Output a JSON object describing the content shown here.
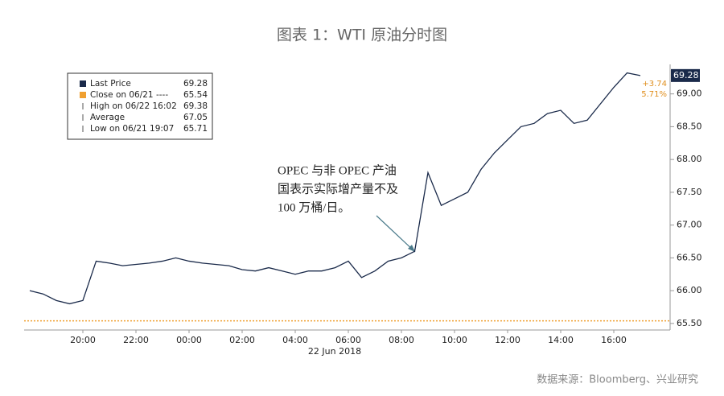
{
  "chart_data": {
    "type": "line",
    "title": "图表 1：WTI 原油分时图",
    "x_sublabel": "22 Jun 2018",
    "source": "数据来源：Bloomberg、兴业研究",
    "annotation": [
      "OPEC 与非 OPEC 产油",
      "国表示实际增产量不及",
      "100 万桶/日。"
    ],
    "categories": [
      null,
      null,
      null,
      null,
      "20:00",
      null,
      null,
      null,
      "22:00",
      null,
      null,
      null,
      "00:00",
      null,
      null,
      null,
      "02:00",
      null,
      null,
      null,
      "04:00",
      null,
      null,
      null,
      "06:00",
      null,
      null,
      null,
      "08:00",
      null,
      null,
      null,
      "10:00",
      null,
      null,
      null,
      "12:00",
      null,
      null,
      null,
      "14:00",
      null,
      null,
      null,
      "16:00",
      null,
      null
    ],
    "series": [
      {
        "name": "Last Price",
        "color": "#1a2a4a",
        "values": [
          66.0,
          65.95,
          65.85,
          65.8,
          65.85,
          66.45,
          66.42,
          66.38,
          66.4,
          66.42,
          66.45,
          66.5,
          66.45,
          66.42,
          66.4,
          66.38,
          66.32,
          66.3,
          66.35,
          66.3,
          66.25,
          66.3,
          66.3,
          66.35,
          66.45,
          66.2,
          66.3,
          66.45,
          66.5,
          66.6,
          67.8,
          67.3,
          67.4,
          67.5,
          67.85,
          68.1,
          68.3,
          68.5,
          68.55,
          68.7,
          68.75,
          68.55,
          68.6,
          68.85,
          69.1,
          69.32,
          69.28
        ]
      }
    ],
    "legend": [
      {
        "label": "Last Price",
        "value": 69.28,
        "color": "#1a2a4a"
      },
      {
        "label": "Close on 06/21 ----",
        "value": 65.54,
        "color": "#f0a030"
      },
      {
        "label": "High on 06/22 16:02",
        "value": 69.38
      },
      {
        "label": "Average",
        "value": 67.05
      },
      {
        "label": "Low on 06/21 19:07",
        "value": 65.71
      }
    ],
    "change": {
      "value": 3.74,
      "label": "+3.74"
    },
    "change_pct": {
      "value": 5.71,
      "label": "5.71%"
    },
    "ylim": [
      65.4,
      69.45
    ],
    "yticks": [
      {
        "value": 65.5,
        "label": "65.50"
      },
      {
        "value": 66.0,
        "label": "66.00"
      },
      {
        "value": 66.5,
        "label": "66.50"
      },
      {
        "value": 67.0,
        "label": "67.00"
      },
      {
        "value": 67.5,
        "label": "67.50"
      },
      {
        "value": 68.0,
        "label": "68.00"
      },
      {
        "value": 68.5,
        "label": "68.50"
      },
      {
        "value": 69.0,
        "label": "69.00"
      }
    ]
  }
}
